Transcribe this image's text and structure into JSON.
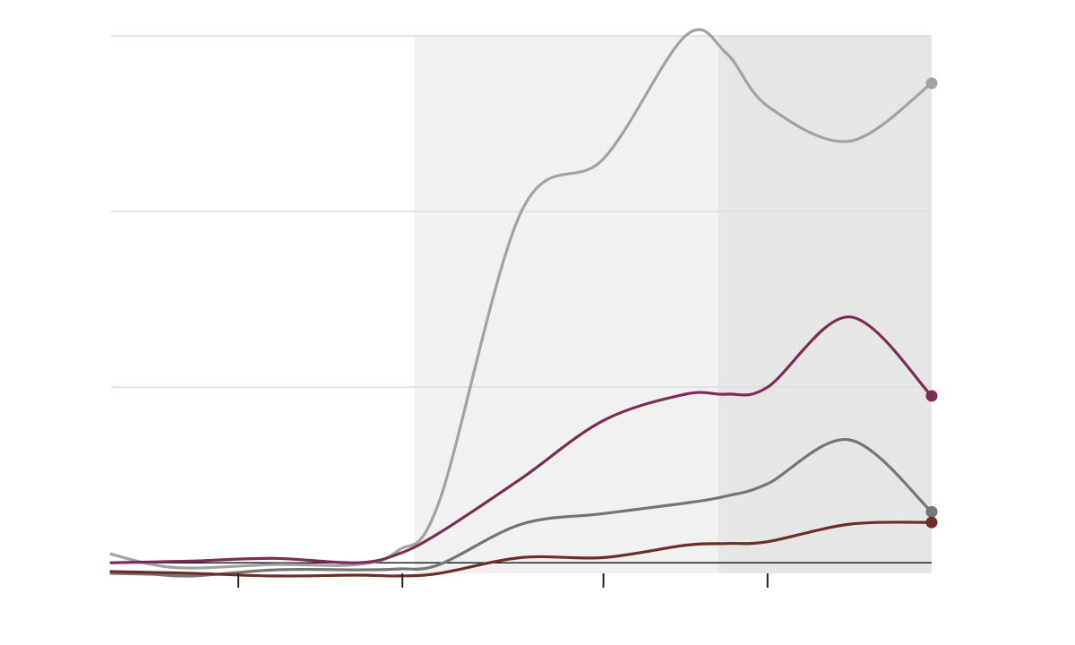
{
  "chart_data": {
    "type": "line",
    "title": "",
    "xlabel": "",
    "ylabel": "",
    "xlim": [
      0,
      10
    ],
    "ylim": [
      -0.6,
      30
    ],
    "grid": "horizontal",
    "gridlines_y": [
      10,
      20,
      30
    ],
    "baseline_y": 0,
    "x_ticks": [
      1.55,
      3.55,
      6.0,
      8.0
    ],
    "x_tick_labels": [],
    "shaded_regions": [
      {
        "from": 3.7,
        "to": 7.4,
        "color": "#f1f1f0"
      },
      {
        "from": 7.4,
        "to": 10.0,
        "color": "#e6e6e5"
      }
    ],
    "x": [
      0,
      0.5,
      1,
      2,
      3,
      3.5,
      4,
      5,
      6,
      7,
      7.5,
      8,
      9,
      10
    ],
    "series": [
      {
        "color": "#a3a2a1",
        "values": [
          0.5,
          -0.1,
          -0.3,
          -0.1,
          -0.1,
          0.7,
          3.5,
          20.0,
          23.0,
          30.0,
          29.0,
          26.0,
          24.0,
          27.3
        ]
      },
      {
        "color": "#7c2d57",
        "values": [
          0.0,
          0.05,
          0.1,
          0.25,
          0.0,
          0.5,
          1.7,
          4.8,
          8.1,
          9.6,
          9.6,
          10.0,
          14.0,
          9.5
        ]
      },
      {
        "color": "#777574",
        "values": [
          -0.6,
          -0.65,
          -0.75,
          -0.4,
          -0.4,
          -0.35,
          -0.1,
          2.2,
          2.8,
          3.4,
          3.8,
          4.5,
          7.0,
          2.9
        ]
      },
      {
        "color": "#6e2e28",
        "values": [
          -0.5,
          -0.55,
          -0.6,
          -0.75,
          -0.7,
          -0.75,
          -0.6,
          0.3,
          0.3,
          1.0,
          1.1,
          1.2,
          2.2,
          2.3
        ]
      }
    ]
  }
}
